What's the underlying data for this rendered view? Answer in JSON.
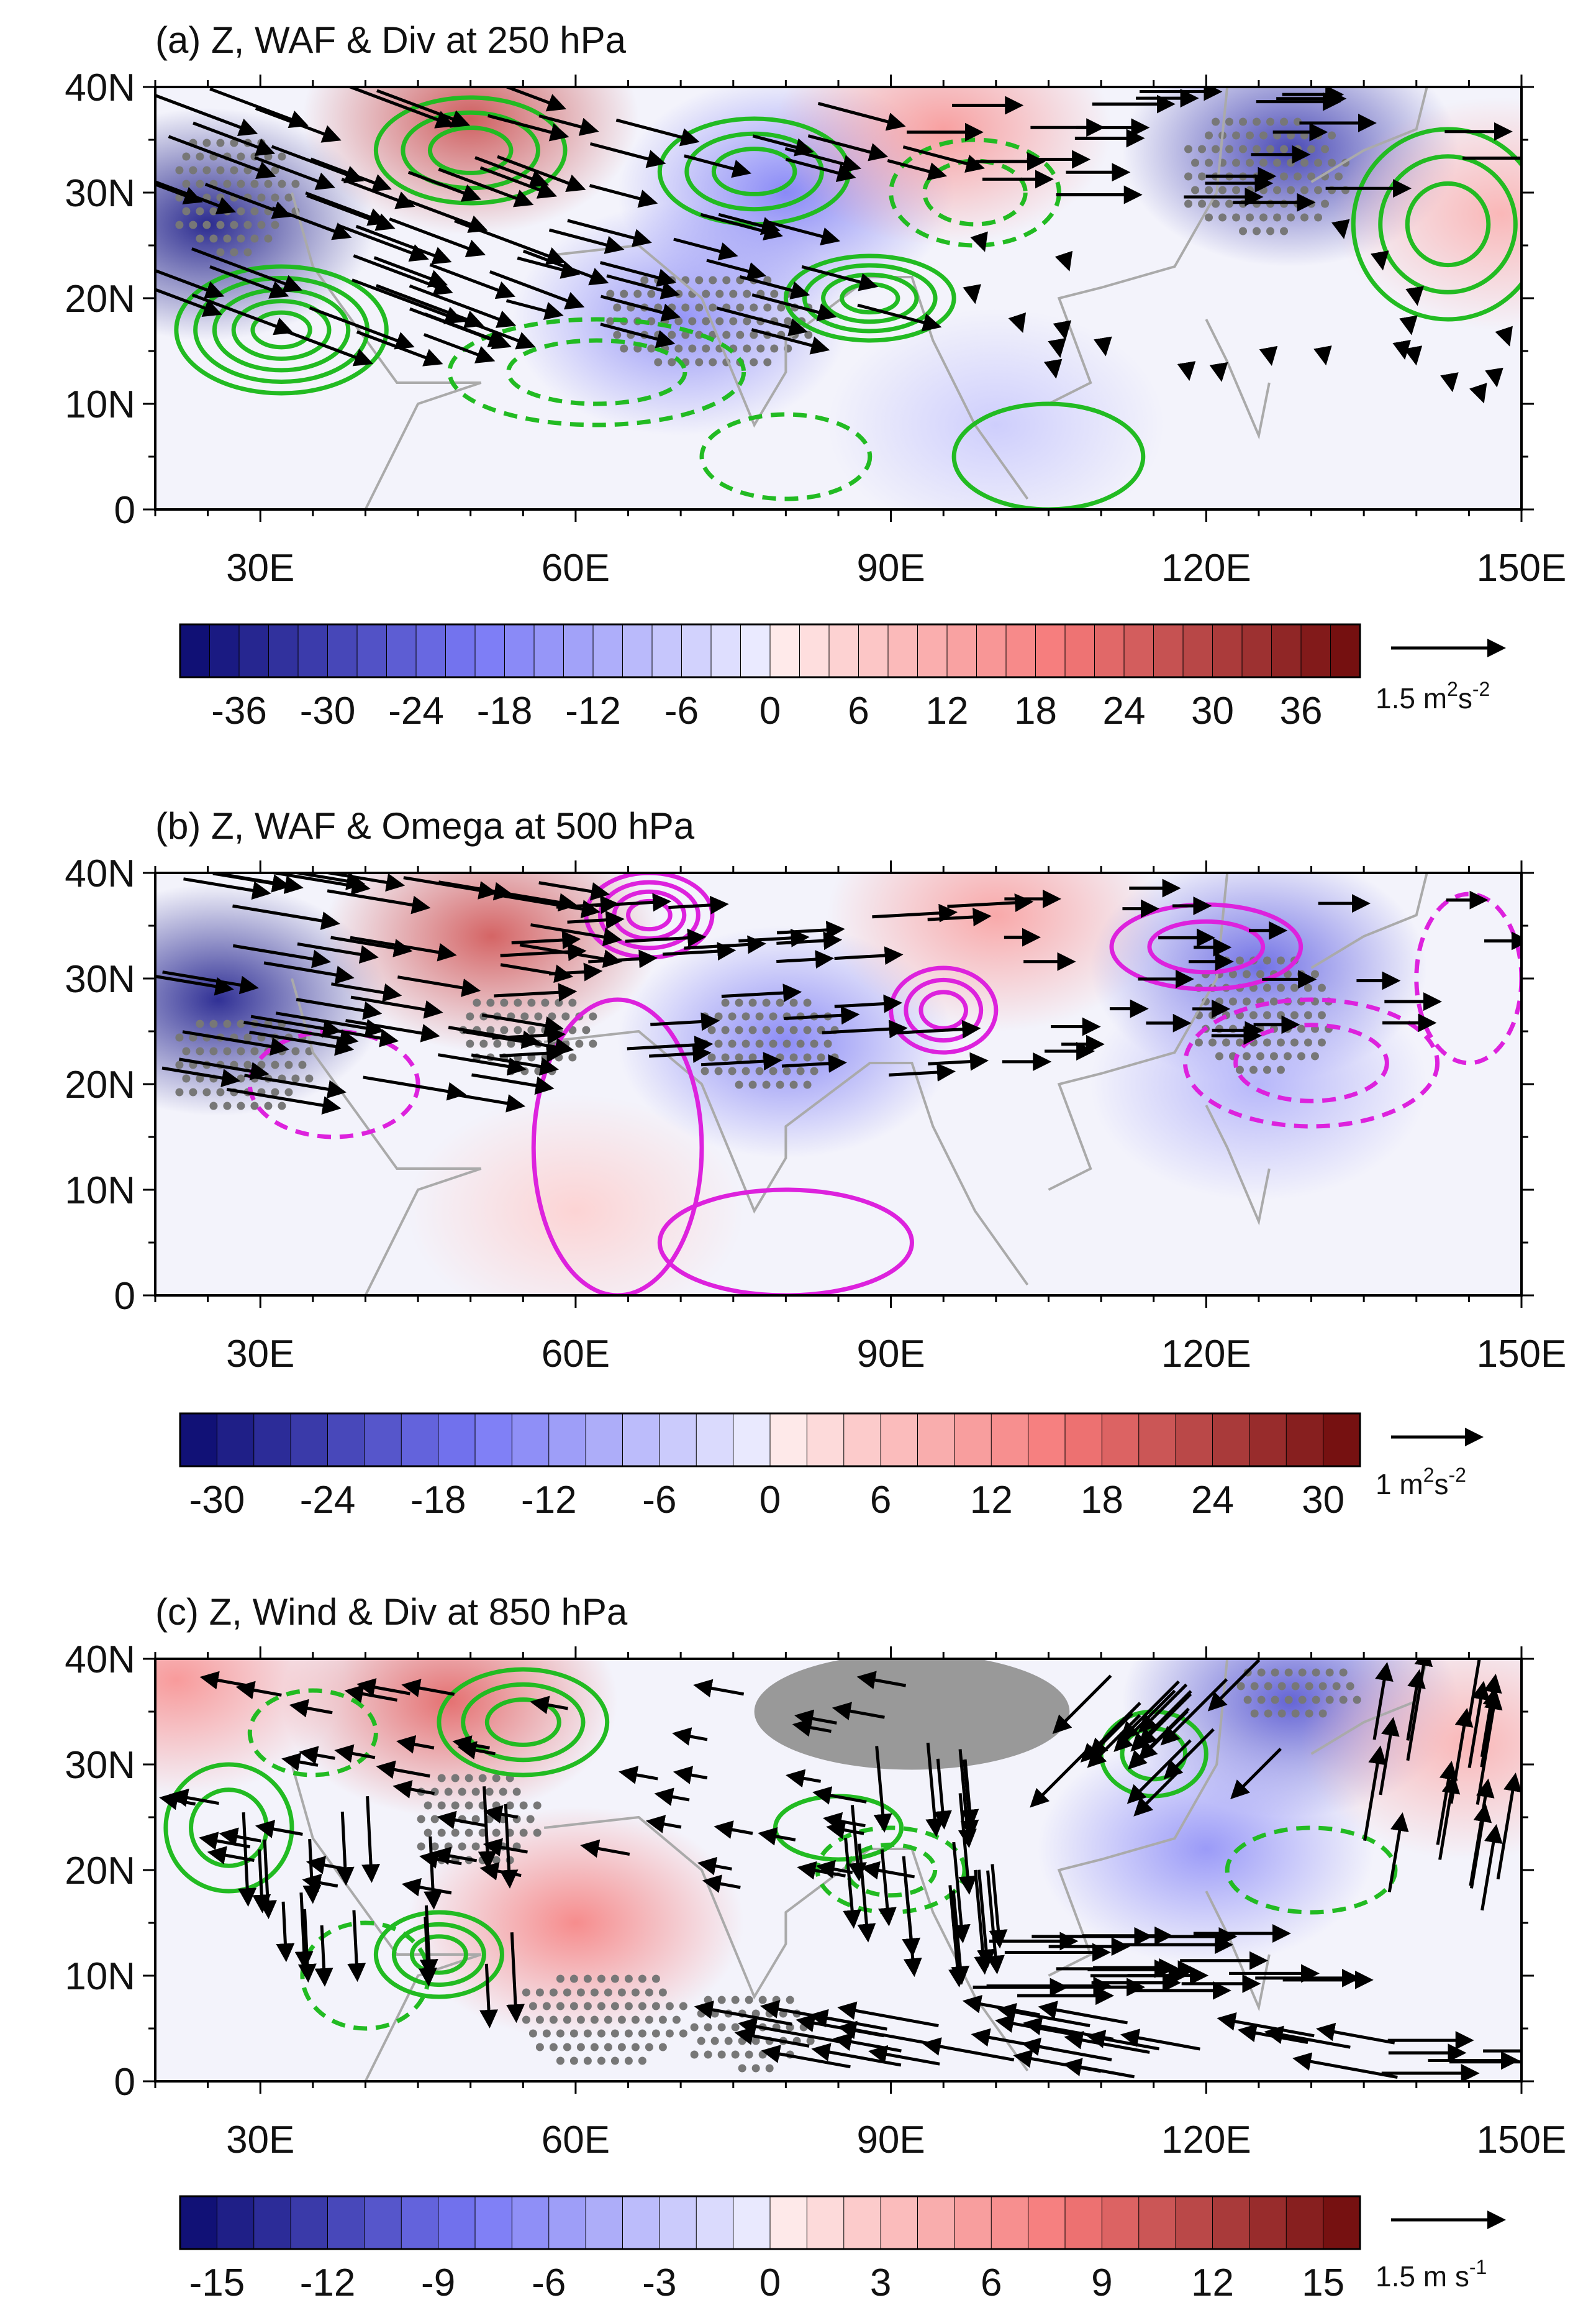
{
  "chart_data": [
    {
      "type": "heatmap",
      "panel": "a",
      "title": "(a) Z, WAF & Div at 250 hPa",
      "xlim": [
        20,
        150
      ],
      "ylim": [
        0,
        40
      ],
      "xticks": [
        {
          "value": 30,
          "label": "30E"
        },
        {
          "value": 60,
          "label": "60E"
        },
        {
          "value": 90,
          "label": "90E"
        },
        {
          "value": 120,
          "label": "120E"
        },
        {
          "value": 150,
          "label": "150E"
        }
      ],
      "yticks": [
        {
          "value": 0,
          "label": "0"
        },
        {
          "value": 10,
          "label": "10N"
        },
        {
          "value": 20,
          "label": "20N"
        },
        {
          "value": 30,
          "label": "30N"
        },
        {
          "value": 40,
          "label": "40N"
        }
      ],
      "colorbar": {
        "min": -40,
        "max": 40,
        "step": 2,
        "labels": [
          "-36",
          "-30",
          "-24",
          "-18",
          "-12",
          "-6",
          "0",
          "6",
          "12",
          "18",
          "24",
          "30",
          "36"
        ],
        "label_values": [
          -36,
          -30,
          -24,
          -18,
          -12,
          -6,
          0,
          6,
          12,
          18,
          24,
          30,
          36
        ]
      },
      "reference_vector": {
        "magnitude": 1.5,
        "label": "1.5 m",
        "sup1": "2",
        "mid": "s",
        "sup2": "-2"
      },
      "contour_color": "#22bb22",
      "anomalies": [
        {
          "lon": 25,
          "lat": 27,
          "value": -36
        },
        {
          "lon": 50,
          "lat": 37,
          "value": 26
        },
        {
          "lon": 70,
          "lat": 18,
          "value": -16
        },
        {
          "lon": 80,
          "lat": 30,
          "value": -18
        },
        {
          "lon": 95,
          "lat": 36,
          "value": 14
        },
        {
          "lon": 128,
          "lat": 34,
          "value": -30
        },
        {
          "lon": 148,
          "lat": 28,
          "value": 10
        },
        {
          "lon": 100,
          "lat": 8,
          "value": -6
        }
      ],
      "contours_solid": [
        {
          "lon": 32,
          "lat": 17,
          "rx": 10,
          "ry": 6,
          "n": 5
        },
        {
          "lon": 50,
          "lat": 34,
          "rx": 9,
          "ry": 5,
          "n": 3
        },
        {
          "lon": 77,
          "lat": 32,
          "rx": 9,
          "ry": 5,
          "n": 3
        },
        {
          "lon": 88,
          "lat": 20,
          "rx": 8,
          "ry": 4,
          "n": 4
        },
        {
          "lon": 143,
          "lat": 27,
          "rx": 9,
          "ry": 9,
          "n": 3
        },
        {
          "lon": 105,
          "lat": 5,
          "rx": 9,
          "ry": 5,
          "n": 1
        }
      ],
      "contours_dashed": [
        {
          "lon": 62,
          "lat": 13,
          "rx": 14,
          "ry": 5,
          "n": 2
        },
        {
          "lon": 98,
          "lat": 30,
          "rx": 8,
          "ry": 5,
          "n": 2
        },
        {
          "lon": 80,
          "lat": 5,
          "rx": 8,
          "ry": 4,
          "n": 1
        }
      ],
      "stipple": [
        {
          "lon": 72,
          "lat": 18,
          "rx": 10,
          "ry": 5
        },
        {
          "lon": 125,
          "lat": 32,
          "rx": 8,
          "ry": 6
        },
        {
          "lon": 27,
          "lat": 30,
          "rx": 6,
          "ry": 6
        }
      ],
      "vector_regions": [
        {
          "lon0": 20,
          "lon1": 60,
          "lat0": 15,
          "lat1": 40,
          "u": 1.2,
          "v": -0.45,
          "n": 48
        },
        {
          "lon0": 55,
          "lon1": 95,
          "lat0": 15,
          "lat1": 38,
          "u": 0.95,
          "v": -0.25,
          "n": 32
        },
        {
          "lon0": 95,
          "lon1": 150,
          "lat0": 28,
          "lat1": 40,
          "u": 0.9,
          "v": 0.0,
          "n": 26
        },
        {
          "lon0": 95,
          "lon1": 150,
          "lat0": 10,
          "lat1": 28,
          "u": 0.05,
          "v": -0.15,
          "n": 22
        }
      ],
      "markers": []
    },
    {
      "type": "heatmap",
      "panel": "b",
      "title": "(b) Z, WAF & Omega at 500 hPa",
      "xlim": [
        20,
        150
      ],
      "ylim": [
        0,
        40
      ],
      "xticks": [
        {
          "value": 30,
          "label": "30E"
        },
        {
          "value": 60,
          "label": "60E"
        },
        {
          "value": 90,
          "label": "90E"
        },
        {
          "value": 120,
          "label": "120E"
        },
        {
          "value": 150,
          "label": "150E"
        }
      ],
      "yticks": [
        {
          "value": 0,
          "label": "0"
        },
        {
          "value": 10,
          "label": "10N"
        },
        {
          "value": 20,
          "label": "20N"
        },
        {
          "value": 30,
          "label": "30N"
        },
        {
          "value": 40,
          "label": "40N"
        }
      ],
      "colorbar": {
        "min": -32,
        "max": 32,
        "step": 2,
        "labels": [
          "-30",
          "-24",
          "-18",
          "-12",
          "-6",
          "0",
          "6",
          "12",
          "18",
          "24",
          "30"
        ],
        "label_values": [
          -30,
          -24,
          -18,
          -12,
          -6,
          0,
          6,
          12,
          18,
          24,
          30
        ]
      },
      "reference_vector": {
        "magnitude": 1,
        "label": "1 m",
        "sup1": "2",
        "mid": "s",
        "sup2": "-2"
      },
      "contour_color": "#dd22dd",
      "anomalies": [
        {
          "lon": 26,
          "lat": 28,
          "value": -28
        },
        {
          "lon": 52,
          "lat": 34,
          "value": 20
        },
        {
          "lon": 80,
          "lat": 24,
          "value": -14
        },
        {
          "lon": 100,
          "lat": 36,
          "value": 10
        },
        {
          "lon": 125,
          "lat": 31,
          "value": -18
        },
        {
          "lon": 125,
          "lat": 20,
          "value": -8
        },
        {
          "lon": 60,
          "lat": 8,
          "value": 4
        }
      ],
      "contours_solid": [
        {
          "lon": 67,
          "lat": 36,
          "rx": 6,
          "ry": 4,
          "n": 4
        },
        {
          "lon": 95,
          "lat": 27,
          "rx": 5,
          "ry": 4,
          "n": 3
        },
        {
          "lon": 120,
          "lat": 33,
          "rx": 9,
          "ry": 4,
          "n": 2
        },
        {
          "lon": 64,
          "lat": 14,
          "rx": 8,
          "ry": 14,
          "n": 1
        },
        {
          "lon": 80,
          "lat": 5,
          "rx": 12,
          "ry": 5,
          "n": 1
        }
      ],
      "contours_dashed": [
        {
          "lon": 37,
          "lat": 20,
          "rx": 8,
          "ry": 5,
          "n": 1
        },
        {
          "lon": 130,
          "lat": 22,
          "rx": 12,
          "ry": 6,
          "n": 2
        },
        {
          "lon": 145,
          "lat": 30,
          "rx": 5,
          "ry": 8,
          "n": 1
        }
      ],
      "stipple": [
        {
          "lon": 28,
          "lat": 22,
          "rx": 7,
          "ry": 5
        },
        {
          "lon": 55,
          "lat": 25,
          "rx": 7,
          "ry": 4
        },
        {
          "lon": 78,
          "lat": 24,
          "rx": 7,
          "ry": 5
        },
        {
          "lon": 125,
          "lat": 27,
          "rx": 7,
          "ry": 6
        }
      ],
      "vector_regions": [
        {
          "lon0": 20,
          "lon1": 60,
          "lat0": 18,
          "lat1": 40,
          "u": 1.2,
          "v": -0.2,
          "n": 46
        },
        {
          "lon0": 55,
          "lon1": 100,
          "lat0": 20,
          "lat1": 38,
          "u": 0.9,
          "v": 0.05,
          "n": 34
        },
        {
          "lon0": 100,
          "lon1": 150,
          "lat0": 22,
          "lat1": 40,
          "u": 0.6,
          "v": 0.0,
          "n": 28
        }
      ],
      "markers": []
    },
    {
      "type": "heatmap",
      "panel": "c",
      "title": "(c) Z, Wind & Div at 850 hPa",
      "xlim": [
        20,
        150
      ],
      "ylim": [
        0,
        40
      ],
      "xticks": [
        {
          "value": 30,
          "label": "30E"
        },
        {
          "value": 60,
          "label": "60E"
        },
        {
          "value": 90,
          "label": "90E"
        },
        {
          "value": 120,
          "label": "120E"
        },
        {
          "value": 150,
          "label": "150E"
        }
      ],
      "yticks": [
        {
          "value": 0,
          "label": "0"
        },
        {
          "value": 10,
          "label": "10N"
        },
        {
          "value": 20,
          "label": "20N"
        },
        {
          "value": 30,
          "label": "30N"
        },
        {
          "value": 40,
          "label": "40N"
        }
      ],
      "colorbar": {
        "min": -16,
        "max": 16,
        "step": 1,
        "labels": [
          "-15",
          "-12",
          "-9",
          "-6",
          "-3",
          "0",
          "3",
          "6",
          "9",
          "12",
          "15"
        ],
        "label_values": [
          -15,
          -12,
          -9,
          -6,
          -3,
          0,
          3,
          6,
          9,
          12,
          15
        ]
      },
      "reference_vector": {
        "magnitude": 1.5,
        "label": "1.5 m s",
        "sup1": "",
        "mid": "",
        "sup2": "-1"
      },
      "contour_color": "#22bb22",
      "anomalies": [
        {
          "lon": 48,
          "lat": 36,
          "value": 9
        },
        {
          "lon": 60,
          "lat": 15,
          "value": 7
        },
        {
          "lon": 128,
          "lat": 36,
          "value": -10
        },
        {
          "lon": 120,
          "lat": 22,
          "value": -6
        },
        {
          "lon": 145,
          "lat": 32,
          "value": 4
        },
        {
          "lon": 22,
          "lat": 38,
          "value": 6
        }
      ],
      "contours_solid": [
        {
          "lon": 47,
          "lat": 12,
          "rx": 6,
          "ry": 4,
          "n": 3
        },
        {
          "lon": 55,
          "lat": 34,
          "rx": 8,
          "ry": 5,
          "n": 3
        },
        {
          "lon": 27,
          "lat": 24,
          "rx": 6,
          "ry": 6,
          "n": 2
        },
        {
          "lon": 115,
          "lat": 31,
          "rx": 5,
          "ry": 4,
          "n": 2
        },
        {
          "lon": 85,
          "lat": 24,
          "rx": 6,
          "ry": 3,
          "n": 1
        }
      ],
      "contours_dashed": [
        {
          "lon": 40,
          "lat": 10,
          "rx": 6,
          "ry": 5,
          "n": 1
        },
        {
          "lon": 90,
          "lat": 20,
          "rx": 7,
          "ry": 4,
          "n": 2
        },
        {
          "lon": 130,
          "lat": 20,
          "rx": 8,
          "ry": 4,
          "n": 1
        },
        {
          "lon": 35,
          "lat": 33,
          "rx": 6,
          "ry": 4,
          "n": 1
        }
      ],
      "stipple": [
        {
          "lon": 62,
          "lat": 6,
          "rx": 8,
          "ry": 5
        },
        {
          "lon": 76,
          "lat": 5,
          "rx": 6,
          "ry": 4
        },
        {
          "lon": 128,
          "lat": 37,
          "rx": 6,
          "ry": 3
        },
        {
          "lon": 50,
          "lat": 25,
          "rx": 6,
          "ry": 5
        }
      ],
      "vector_regions": [
        {
          "lon0": 22,
          "lon1": 90,
          "lat0": 18,
          "lat1": 38,
          "u": -0.55,
          "v": 0.1,
          "n": 52
        },
        {
          "lon0": 25,
          "lon1": 55,
          "lat0": 8,
          "lat1": 25,
          "u": 0.05,
          "v": -1.0,
          "n": 18
        },
        {
          "lon0": 85,
          "lon1": 100,
          "lat0": 12,
          "lat1": 28,
          "u": 0.1,
          "v": -1.1,
          "n": 20
        },
        {
          "lon0": 100,
          "lon1": 135,
          "lat0": 8,
          "lat1": 14,
          "u": 1.35,
          "v": 0.0,
          "n": 24
        },
        {
          "lon0": 75,
          "lon1": 135,
          "lat0": 1,
          "lat1": 7,
          "u": -1.1,
          "v": 0.2,
          "n": 30
        },
        {
          "lon0": 105,
          "lon1": 125,
          "lat0": 25,
          "lat1": 38,
          "u": -0.7,
          "v": -0.7,
          "n": 18
        },
        {
          "lon0": 135,
          "lon1": 150,
          "lat0": 18,
          "lat1": 38,
          "u": 0.2,
          "v": 1.2,
          "n": 18
        },
        {
          "lon0": 135,
          "lon1": 150,
          "lat0": 0,
          "lat1": 4,
          "u": 1.1,
          "v": 0.0,
          "n": 6
        }
      ],
      "markers": [
        {
          "kind": "terrain-mask",
          "lon": 92,
          "lat": 35,
          "rx": 15,
          "ry": 5.5,
          "color": "#999999"
        }
      ]
    }
  ]
}
